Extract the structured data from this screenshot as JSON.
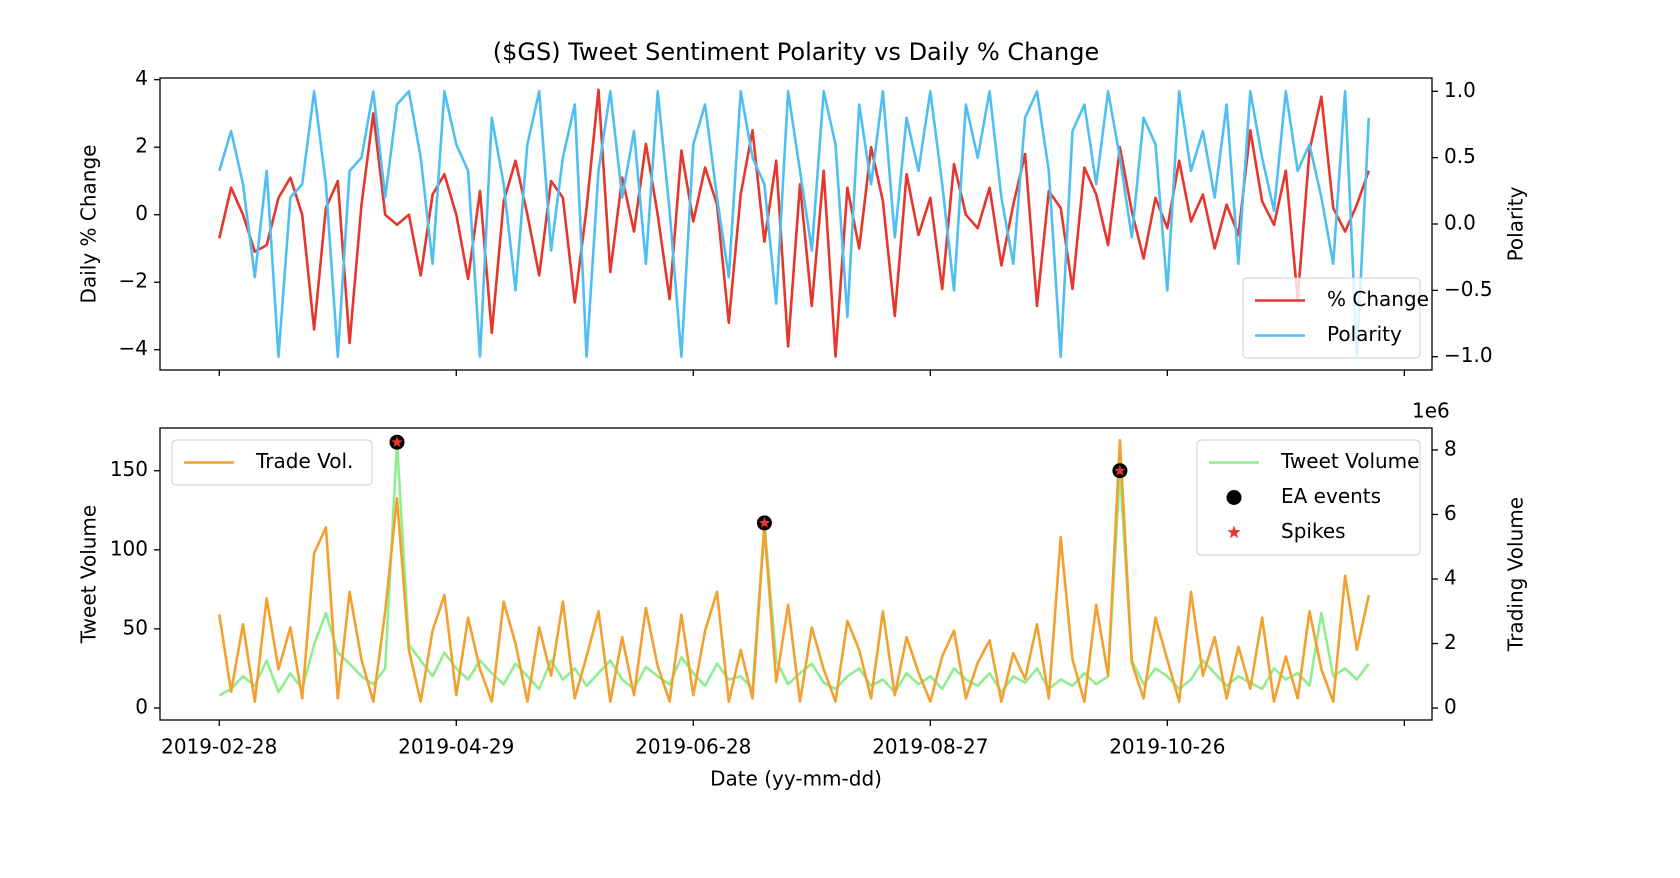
{
  "chart_data": [
    {
      "type": "line",
      "title": "($GS) Tweet Sentiment Polarity vs Daily % Change",
      "ylabel": "Daily % Change",
      "y2label": "Polarity",
      "x": [
        "2019-02-28",
        "2019-03-03",
        "2019-03-06",
        "2019-03-09",
        "2019-03-12",
        "2019-03-15",
        "2019-03-18",
        "2019-03-21",
        "2019-03-24",
        "2019-03-27",
        "2019-03-30",
        "2019-04-02",
        "2019-04-05",
        "2019-04-08",
        "2019-04-11",
        "2019-04-14",
        "2019-04-17",
        "2019-04-20",
        "2019-04-23",
        "2019-04-26",
        "2019-04-29",
        "2019-05-02",
        "2019-05-05",
        "2019-05-08",
        "2019-05-11",
        "2019-05-14",
        "2019-05-17",
        "2019-05-20",
        "2019-05-23",
        "2019-05-26",
        "2019-05-29",
        "2019-06-01",
        "2019-06-04",
        "2019-06-07",
        "2019-06-10",
        "2019-06-13",
        "2019-06-16",
        "2019-06-19",
        "2019-06-22",
        "2019-06-25",
        "2019-06-28",
        "2019-07-01",
        "2019-07-04",
        "2019-07-07",
        "2019-07-10",
        "2019-07-13",
        "2019-07-16",
        "2019-07-19",
        "2019-07-22",
        "2019-07-25",
        "2019-07-28",
        "2019-07-31",
        "2019-08-03",
        "2019-08-06",
        "2019-08-09",
        "2019-08-12",
        "2019-08-15",
        "2019-08-18",
        "2019-08-21",
        "2019-08-24",
        "2019-08-27",
        "2019-08-30",
        "2019-09-02",
        "2019-09-05",
        "2019-09-08",
        "2019-09-11",
        "2019-09-14",
        "2019-09-17",
        "2019-09-20",
        "2019-09-23",
        "2019-09-26",
        "2019-09-29",
        "2019-10-02",
        "2019-10-05",
        "2019-10-08",
        "2019-10-11",
        "2019-10-14",
        "2019-10-17",
        "2019-10-20",
        "2019-10-23",
        "2019-10-26",
        "2019-10-29",
        "2019-11-01",
        "2019-11-04",
        "2019-11-07",
        "2019-11-10",
        "2019-11-13",
        "2019-11-16",
        "2019-11-19",
        "2019-11-22",
        "2019-11-25",
        "2019-11-28",
        "2019-12-01",
        "2019-12-04",
        "2019-12-07",
        "2019-12-10",
        "2019-12-13",
        "2019-12-16"
      ],
      "xlim": [
        "2019-02-13",
        "2020-01-01"
      ],
      "xticks": [
        "2019-02-28",
        "2019-04-29",
        "2019-06-28",
        "2019-08-27",
        "2019-10-26",
        "2019-12-25"
      ],
      "show_xticklabels": false,
      "ylim": [
        -4.6,
        4.05
      ],
      "yticks": [
        {
          "value": -4,
          "label": "−4"
        },
        {
          "value": -2,
          "label": "−2"
        },
        0,
        2,
        4
      ],
      "y2lim": [
        -1.1,
        1.1
      ],
      "y2ticks": [
        {
          "value": -1,
          "label": "−1.0"
        },
        {
          "value": -0.5,
          "label": "−0.5"
        },
        {
          "value": 0,
          "label": "0.0"
        },
        0.5,
        {
          "value": 1,
          "label": "1.0"
        }
      ],
      "legend_loc": "lower right",
      "series": [
        {
          "name": "% Change",
          "color": "#e5372c",
          "axis": "y",
          "values": [
            -0.7,
            0.8,
            0,
            -1.1,
            -0.9,
            0.5,
            1.1,
            0,
            -3.4,
            0.2,
            1.0,
            -3.8,
            0.3,
            3.0,
            0,
            -0.3,
            0,
            -1.8,
            0.6,
            1.2,
            0,
            -1.9,
            0.7,
            -3.5,
            0.4,
            1.6,
            0,
            -1.8,
            1.0,
            0.5,
            -2.6,
            0.2,
            3.7,
            -1.7,
            1.1,
            -0.5,
            2.1,
            0,
            -2.5,
            1.9,
            -0.2,
            1.4,
            0.3,
            -3.2,
            0.6,
            2.5,
            -0.8,
            1.6,
            -3.9,
            0.9,
            -2.7,
            1.3,
            -4.2,
            0.8,
            -1.0,
            2.0,
            0.4,
            -3.0,
            1.2,
            -0.6,
            0.5,
            -2.2,
            1.5,
            0,
            -0.4,
            0.8,
            -1.5,
            0.3,
            1.8,
            -2.7,
            0.7,
            0.2,
            -2.2,
            1.4,
            0.6,
            -0.9,
            2.0,
            0.1,
            -1.3,
            0.5,
            -0.4,
            1.6,
            -0.2,
            0.6,
            -1.0,
            0.3,
            -0.6,
            2.5,
            0.4,
            -0.3,
            1.3,
            -2.5,
            1.9,
            3.5,
            0.2,
            -0.5,
            0.3,
            1.3
          ]
        },
        {
          "name": "Polarity",
          "color": "#4fbff2",
          "axis": "y2",
          "values": [
            0.4,
            0.7,
            0.3,
            -0.4,
            0.4,
            -1.0,
            0.2,
            0.3,
            1.0,
            0.3,
            -1.0,
            0.4,
            0.5,
            1.0,
            0.2,
            0.9,
            1.0,
            0.5,
            -0.3,
            1.0,
            0.6,
            0.4,
            -1.0,
            0.8,
            0.3,
            -0.5,
            0.6,
            1.0,
            -0.2,
            0.5,
            0.9,
            -1.0,
            0.4,
            1.0,
            0.2,
            0.7,
            -0.3,
            1.0,
            0.1,
            -1.0,
            0.6,
            0.9,
            0.2,
            -0.4,
            1.0,
            0.5,
            0.3,
            -0.6,
            1.0,
            0.4,
            -0.2,
            1.0,
            0.6,
            -0.7,
            0.9,
            0.3,
            1.0,
            -0.1,
            0.8,
            0.4,
            1.0,
            0.3,
            -0.5,
            0.9,
            0.5,
            1.0,
            0.2,
            -0.3,
            0.8,
            1.0,
            0.4,
            -1.0,
            0.7,
            0.9,
            0.3,
            1.0,
            0.5,
            -0.1,
            0.8,
            0.6,
            -0.5,
            1.0,
            0.4,
            0.7,
            0.2,
            0.9,
            -0.3,
            1.0,
            0.5,
            0.1,
            1.0,
            0.4,
            0.6,
            0.2,
            -0.3,
            1.0,
            -1.0,
            0.8
          ]
        }
      ]
    },
    {
      "type": "line",
      "xlabel": "Date (yy-mm-dd)",
      "ylabel": "Tweet Volume",
      "y2label": "Trading Volume",
      "y2_offset_label": "1e6",
      "x": [
        "2019-02-28",
        "2019-03-03",
        "2019-03-06",
        "2019-03-09",
        "2019-03-12",
        "2019-03-15",
        "2019-03-18",
        "2019-03-21",
        "2019-03-24",
        "2019-03-27",
        "2019-03-30",
        "2019-04-02",
        "2019-04-05",
        "2019-04-08",
        "2019-04-11",
        "2019-04-14",
        "2019-04-17",
        "2019-04-20",
        "2019-04-23",
        "2019-04-26",
        "2019-04-29",
        "2019-05-02",
        "2019-05-05",
        "2019-05-08",
        "2019-05-11",
        "2019-05-14",
        "2019-05-17",
        "2019-05-20",
        "2019-05-23",
        "2019-05-26",
        "2019-05-29",
        "2019-06-01",
        "2019-06-04",
        "2019-06-07",
        "2019-06-10",
        "2019-06-13",
        "2019-06-16",
        "2019-06-19",
        "2019-06-22",
        "2019-06-25",
        "2019-06-28",
        "2019-07-01",
        "2019-07-04",
        "2019-07-07",
        "2019-07-10",
        "2019-07-13",
        "2019-07-16",
        "2019-07-19",
        "2019-07-22",
        "2019-07-25",
        "2019-07-28",
        "2019-07-31",
        "2019-08-03",
        "2019-08-06",
        "2019-08-09",
        "2019-08-12",
        "2019-08-15",
        "2019-08-18",
        "2019-08-21",
        "2019-08-24",
        "2019-08-27",
        "2019-08-30",
        "2019-09-02",
        "2019-09-05",
        "2019-09-08",
        "2019-09-11",
        "2019-09-14",
        "2019-09-17",
        "2019-09-20",
        "2019-09-23",
        "2019-09-26",
        "2019-09-29",
        "2019-10-02",
        "2019-10-05",
        "2019-10-08",
        "2019-10-11",
        "2019-10-14",
        "2019-10-17",
        "2019-10-20",
        "2019-10-23",
        "2019-10-26",
        "2019-10-29",
        "2019-11-01",
        "2019-11-04",
        "2019-11-07",
        "2019-11-10",
        "2019-11-13",
        "2019-11-16",
        "2019-11-19",
        "2019-11-22",
        "2019-11-25",
        "2019-11-28",
        "2019-12-01",
        "2019-12-04",
        "2019-12-07",
        "2019-12-10",
        "2019-12-13",
        "2019-12-16"
      ],
      "xlim": [
        "2019-02-13",
        "2020-01-01"
      ],
      "xticks": [
        "2019-02-28",
        "2019-04-29",
        "2019-06-28",
        "2019-08-27",
        "2019-10-26",
        {
          "value": "2019-12-25",
          "label": null
        }
      ],
      "show_xticklabels": true,
      "ylim": [
        -7.6,
        177
      ],
      "yticks": [
        0,
        50,
        100,
        150
      ],
      "y2lim": [
        -0.37,
        8.68
      ],
      "y2ticks": [
        0,
        2,
        4,
        6,
        8
      ],
      "legend_loc": "upper right",
      "y2_legend_loc": "upper left",
      "series": [
        {
          "name": "Tweet Volume",
          "color": "#90ee90",
          "axis": "y",
          "values": [
            8,
            12,
            20,
            14,
            30,
            10,
            22,
            12,
            40,
            60,
            35,
            28,
            20,
            15,
            25,
            168,
            40,
            30,
            20,
            35,
            25,
            18,
            30,
            22,
            15,
            28,
            20,
            12,
            30,
            18,
            25,
            14,
            22,
            30,
            18,
            12,
            26,
            20,
            15,
            32,
            22,
            14,
            28,
            18,
            20,
            12,
            117,
            30,
            15,
            22,
            28,
            16,
            12,
            20,
            25,
            14,
            18,
            10,
            22,
            15,
            20,
            12,
            25,
            18,
            14,
            22,
            10,
            20,
            16,
            25,
            12,
            18,
            14,
            22,
            15,
            20,
            150,
            30,
            15,
            25,
            20,
            12,
            18,
            30,
            22,
            14,
            20,
            16,
            12,
            25,
            18,
            22,
            14,
            60,
            20,
            25,
            18,
            28
          ]
        },
        {
          "name": "Trade Vol.",
          "color": "#f2a12e",
          "axis": "y2",
          "values": [
            2.9,
            0.5,
            2.6,
            0.2,
            3.4,
            1.2,
            2.5,
            0.3,
            4.8,
            5.6,
            0.3,
            3.6,
            1.5,
            0.2,
            3.0,
            6.5,
            1.8,
            0.2,
            2.4,
            3.5,
            0.4,
            2.8,
            1.2,
            0.2,
            3.3,
            2.0,
            0.2,
            2.5,
            1.0,
            3.3,
            0.3,
            1.6,
            3.0,
            0.2,
            2.2,
            0.4,
            3.1,
            1.3,
            0.2,
            2.9,
            0.4,
            2.4,
            3.6,
            0.2,
            1.8,
            0.3,
            5.6,
            0.8,
            3.2,
            0.2,
            2.5,
            1.2,
            0.2,
            2.7,
            1.8,
            0.3,
            3.0,
            0.4,
            2.2,
            1.1,
            0.2,
            1.6,
            2.4,
            0.3,
            1.4,
            2.1,
            0.2,
            1.7,
            0.9,
            2.6,
            0.3,
            5.3,
            1.5,
            0.2,
            3.2,
            1.0,
            8.3,
            1.4,
            0.3,
            2.8,
            1.5,
            0.2,
            3.6,
            1.0,
            2.2,
            0.3,
            1.9,
            0.6,
            2.8,
            0.2,
            1.6,
            0.3,
            3.0,
            1.2,
            0.2,
            4.1,
            1.8,
            3.5
          ]
        }
      ],
      "markers": [
        {
          "name": "EA events",
          "color": "#000000",
          "shape": "circle",
          "x": [
            "2019-04-14",
            "2019-07-16",
            "2019-10-14"
          ],
          "values": [
            168,
            117,
            150
          ]
        },
        {
          "name": "Spikes",
          "color": "#e5372c",
          "shape": "star",
          "x": [
            "2019-04-14",
            "2019-07-16",
            "2019-10-14"
          ],
          "values": [
            168,
            117,
            150
          ]
        }
      ]
    }
  ]
}
